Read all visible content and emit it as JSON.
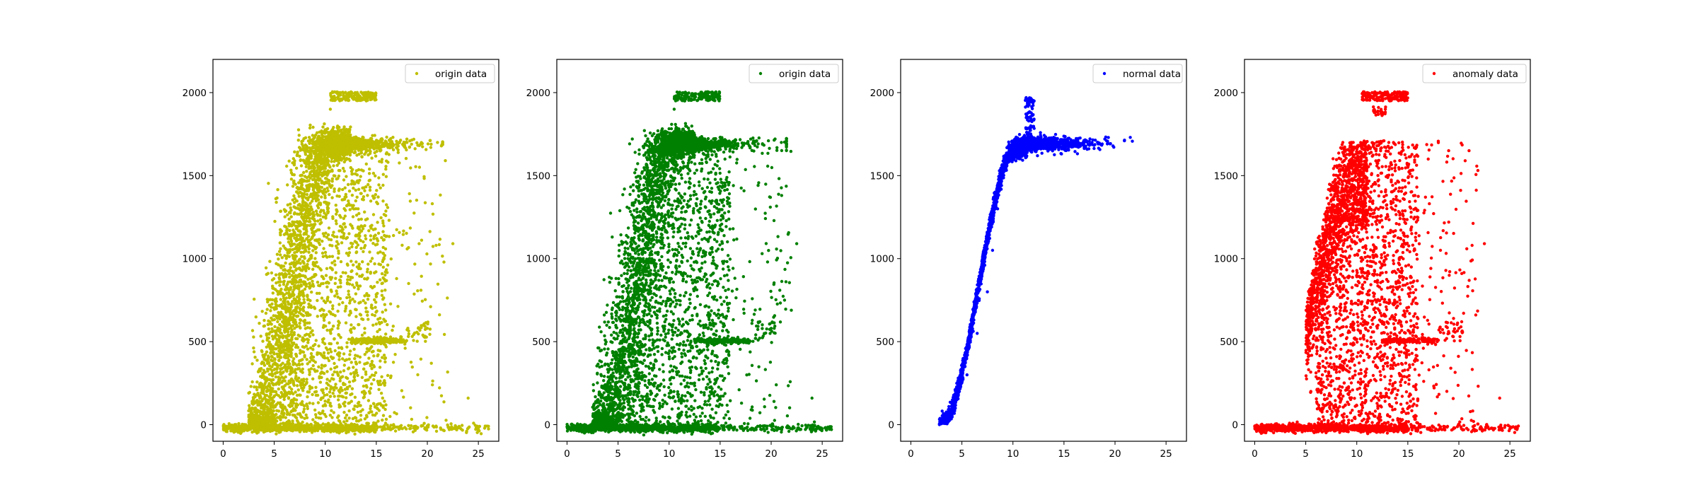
{
  "figure": {
    "background": "#ffffff"
  },
  "chart_data": [
    {
      "type": "scatter",
      "title": "",
      "xlabel": "",
      "ylabel": "",
      "xlim": [
        -1,
        27
      ],
      "ylim": [
        -100,
        2200
      ],
      "xticks": [
        0,
        5,
        10,
        15,
        20,
        25
      ],
      "yticks": [
        0,
        500,
        1000,
        1500,
        2000
      ],
      "legend": "top-right",
      "grid": false,
      "color": "#bfbf00",
      "series": [
        {
          "name": "origin data",
          "shape": "origin",
          "points": [
            [
              0.2,
              -20
            ],
            [
              1.5,
              -30
            ],
            [
              2.5,
              -10
            ],
            [
              3.5,
              5
            ],
            [
              4.5,
              80
            ],
            [
              5.5,
              250
            ],
            [
              6.5,
              480
            ],
            [
              7.5,
              800
            ],
            [
              8.5,
              1200
            ],
            [
              9.5,
              1600
            ],
            [
              10.5,
              1900
            ],
            [
              11.5,
              2000
            ],
            [
              12.0,
              1700
            ],
            [
              14.0,
              1690
            ],
            [
              16.0,
              1700
            ],
            [
              18.0,
              1720
            ],
            [
              21.0,
              1700
            ],
            [
              13.0,
              500
            ],
            [
              16.0,
              510
            ],
            [
              20.0,
              580
            ],
            [
              25.0,
              -25
            ],
            [
              22.5,
              1090
            ],
            [
              24.0,
              160
            ],
            [
              20.5,
              240
            ]
          ]
        }
      ]
    },
    {
      "type": "scatter",
      "title": "",
      "xlabel": "",
      "ylabel": "",
      "xlim": [
        -1,
        27
      ],
      "ylim": [
        -100,
        2200
      ],
      "xticks": [
        0,
        5,
        10,
        15,
        20,
        25
      ],
      "yticks": [
        0,
        500,
        1000,
        1500,
        2000
      ],
      "legend": "top-right",
      "grid": false,
      "color": "#008000",
      "series": [
        {
          "name": "origin data",
          "shape": "origin",
          "points": [
            [
              0.2,
              -20
            ],
            [
              1.5,
              -30
            ],
            [
              2.5,
              -10
            ],
            [
              3.5,
              5
            ],
            [
              4.5,
              80
            ],
            [
              5.5,
              250
            ],
            [
              6.5,
              480
            ],
            [
              7.5,
              800
            ],
            [
              8.5,
              1200
            ],
            [
              9.5,
              1600
            ],
            [
              10.5,
              1900
            ],
            [
              11.5,
              2000
            ],
            [
              12.0,
              1700
            ],
            [
              14.0,
              1690
            ],
            [
              16.0,
              1700
            ],
            [
              18.0,
              1720
            ],
            [
              21.0,
              1700
            ],
            [
              13.0,
              500
            ],
            [
              16.0,
              510
            ],
            [
              20.0,
              580
            ],
            [
              25.0,
              -25
            ],
            [
              22.5,
              1090
            ],
            [
              24.0,
              160
            ],
            [
              20.5,
              240
            ]
          ]
        }
      ]
    },
    {
      "type": "scatter",
      "title": "",
      "xlabel": "",
      "ylabel": "",
      "xlim": [
        -1,
        27
      ],
      "ylim": [
        -100,
        2200
      ],
      "xticks": [
        0,
        5,
        10,
        15,
        20,
        25
      ],
      "yticks": [
        0,
        500,
        1000,
        1500,
        2000
      ],
      "legend": "top-right",
      "grid": false,
      "color": "#0000ff",
      "series": [
        {
          "name": "normal data",
          "shape": "normal",
          "points": [
            [
              2.8,
              0
            ],
            [
              3.5,
              40
            ],
            [
              4.5,
              150
            ],
            [
              5.5,
              300
            ],
            [
              6.5,
              550
            ],
            [
              7.5,
              800
            ],
            [
              8.0,
              1050
            ],
            [
              8.5,
              1300
            ],
            [
              9.0,
              1500
            ],
            [
              9.5,
              1620
            ],
            [
              10.5,
              1700
            ],
            [
              11.5,
              1960
            ],
            [
              13.0,
              1710
            ],
            [
              15.0,
              1700
            ],
            [
              17.0,
              1710
            ],
            [
              19.0,
              1720
            ],
            [
              21.5,
              1730
            ]
          ]
        }
      ]
    },
    {
      "type": "scatter",
      "title": "",
      "xlabel": "",
      "ylabel": "",
      "xlim": [
        -1,
        27
      ],
      "ylim": [
        -100,
        2200
      ],
      "xticks": [
        0,
        5,
        10,
        15,
        20,
        25
      ],
      "yticks": [
        0,
        500,
        1000,
        1500,
        2000
      ],
      "legend": "top-right",
      "grid": false,
      "color": "#ff0000",
      "series": [
        {
          "name": "anomaly data",
          "shape": "anomaly",
          "points": [
            [
              0.2,
              -20
            ],
            [
              2.0,
              -25
            ],
            [
              5.0,
              -10
            ],
            [
              5.5,
              200
            ],
            [
              7.0,
              400
            ],
            [
              8.0,
              700
            ],
            [
              9.0,
              1000
            ],
            [
              10.0,
              1300
            ],
            [
              11.5,
              2000
            ],
            [
              12.5,
              1960
            ],
            [
              13.0,
              1500
            ],
            [
              15.0,
              1550
            ],
            [
              17.0,
              1600
            ],
            [
              19.0,
              1650
            ],
            [
              21.0,
              1650
            ],
            [
              13.0,
              500
            ],
            [
              16.0,
              510
            ],
            [
              20.0,
              580
            ],
            [
              22.5,
              1090
            ],
            [
              25.0,
              -25
            ],
            [
              24.0,
              160
            ]
          ]
        }
      ]
    }
  ]
}
